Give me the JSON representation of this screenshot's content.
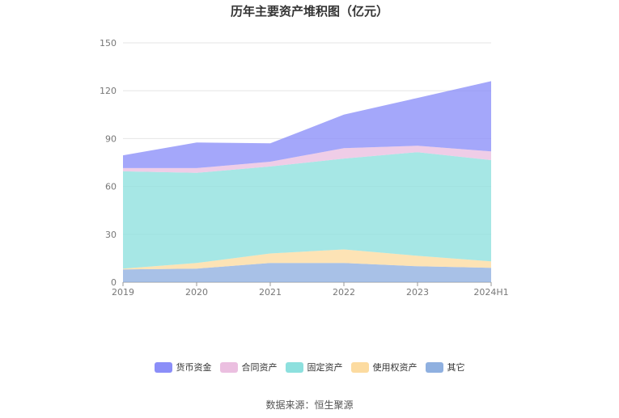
{
  "chart_data": {
    "type": "area",
    "stacked": true,
    "title": "历年主要资产堆积图（亿元）",
    "x": [
      "2019",
      "2020",
      "2021",
      "2022",
      "2023",
      "2024H1"
    ],
    "ylim": [
      0,
      150
    ],
    "yticks": [
      0,
      30,
      60,
      90,
      120,
      150
    ],
    "grid": true,
    "legend_position": "bottom",
    "series": [
      {
        "name": "其它",
        "color": "#8fb0e0",
        "values": [
          8,
          8.5,
          12,
          12,
          10,
          9
        ]
      },
      {
        "name": "使用权资产",
        "color": "#fcdba0",
        "values": [
          0.5,
          3.5,
          6,
          8.5,
          6.5,
          4
        ]
      },
      {
        "name": "固定资产",
        "color": "#8de0de",
        "values": [
          61,
          56.5,
          54.5,
          57,
          65,
          63.5
        ]
      },
      {
        "name": "合同资产",
        "color": "#ebbfe0",
        "values": [
          2,
          3,
          3,
          6.5,
          4,
          5.5
        ]
      },
      {
        "name": "货币资金",
        "color": "#8b8ef8",
        "values": [
          8,
          16,
          11.5,
          21,
          30,
          44
        ]
      }
    ],
    "legend_order": [
      "货币资金",
      "合同资产",
      "固定资产",
      "使用权资产",
      "其它"
    ]
  },
  "source": "数据来源：恒生聚源"
}
